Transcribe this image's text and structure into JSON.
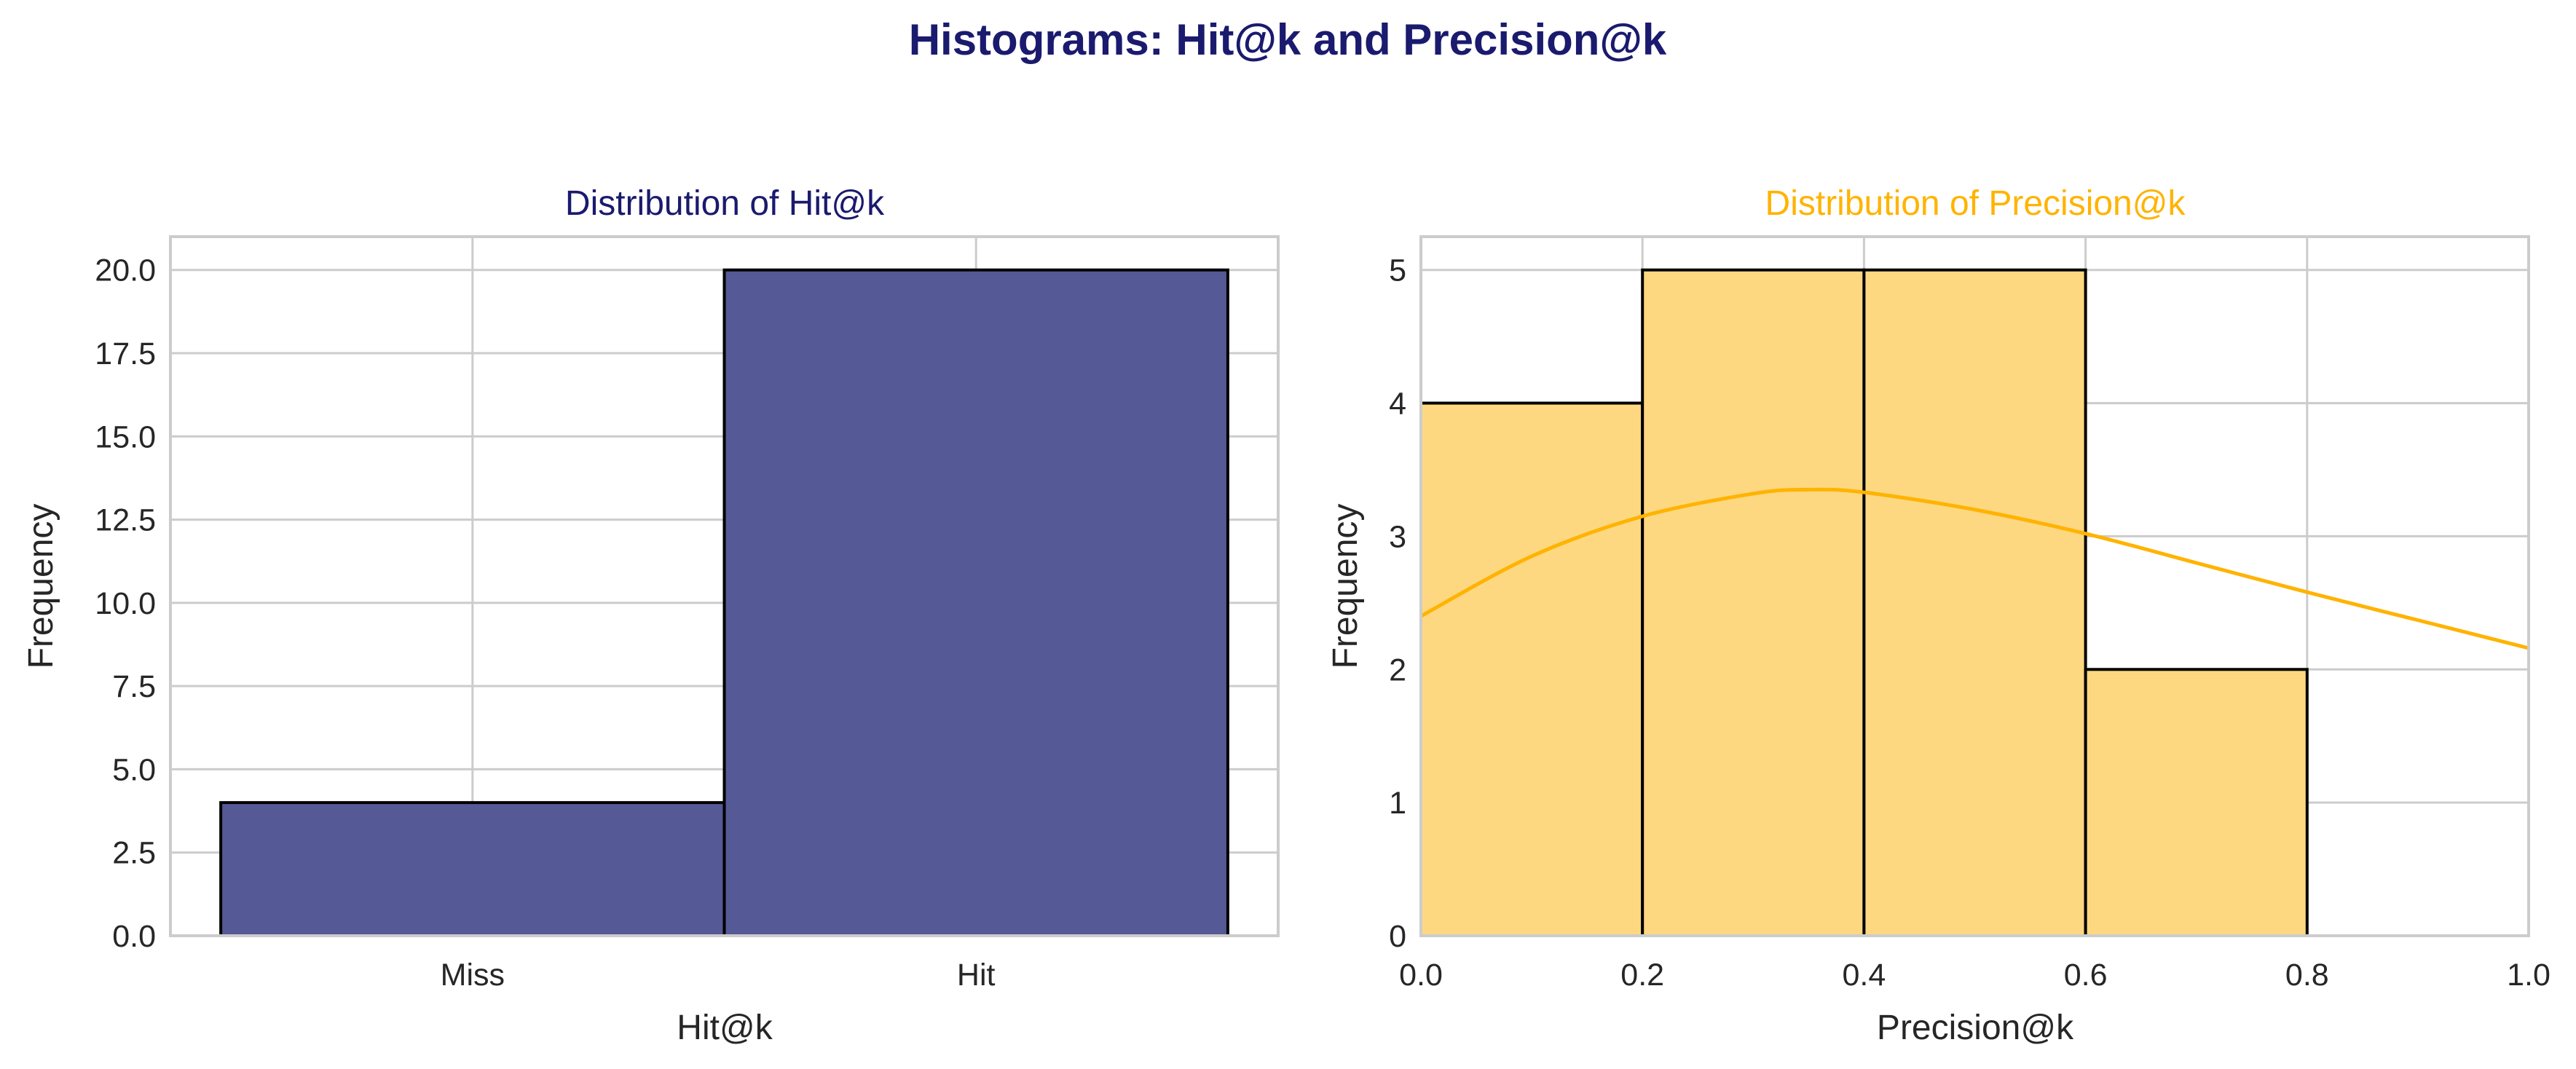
{
  "figure": {
    "title": "Histograms: Hit@k and Precision@k",
    "title_color": "#1a1a6e"
  },
  "chart_data": [
    {
      "type": "bar",
      "title": "Distribution of Hit@k",
      "title_color": "#1a1a6e",
      "xlabel": "Hit@k",
      "ylabel": "Frequency",
      "categories": [
        "Miss",
        "Hit"
      ],
      "values": [
        4,
        20
      ],
      "ylim": [
        0,
        21
      ],
      "yticks": [
        "0.0",
        "2.5",
        "5.0",
        "7.5",
        "10.0",
        "12.5",
        "15.0",
        "17.5",
        "20.0"
      ],
      "bar_color": "#535794",
      "edge_color": "#000000",
      "grid": true
    },
    {
      "type": "bar",
      "subtype": "histogram",
      "title": "Distribution of Precision@k",
      "title_color": "#ffb300",
      "xlabel": "Precision@k",
      "ylabel": "Frequency",
      "bins": [
        {
          "start": 0.0,
          "end": 0.2,
          "count": 4
        },
        {
          "start": 0.2,
          "end": 0.4,
          "count": 5
        },
        {
          "start": 0.4,
          "end": 0.6,
          "count": 5
        },
        {
          "start": 0.6,
          "end": 0.8,
          "count": 2
        }
      ],
      "xlim": [
        0,
        1
      ],
      "ylim": [
        0,
        5.25
      ],
      "xticks": [
        "0.0",
        "0.2",
        "0.4",
        "0.6",
        "0.8",
        "1.0"
      ],
      "yticks": [
        "0",
        "1",
        "2",
        "3",
        "4",
        "5"
      ],
      "kde": {
        "x": [
          0.0,
          0.1,
          0.2,
          0.3,
          0.35,
          0.4,
          0.5,
          0.6,
          0.7,
          0.8,
          0.9,
          1.0
        ],
        "y": [
          2.4,
          2.85,
          3.15,
          3.32,
          3.35,
          3.33,
          3.2,
          3.02,
          2.8,
          2.58,
          2.37,
          2.16
        ]
      },
      "bar_color": "#fdd880",
      "line_color": "#ffb300",
      "edge_color": "#000000",
      "grid": true
    }
  ]
}
